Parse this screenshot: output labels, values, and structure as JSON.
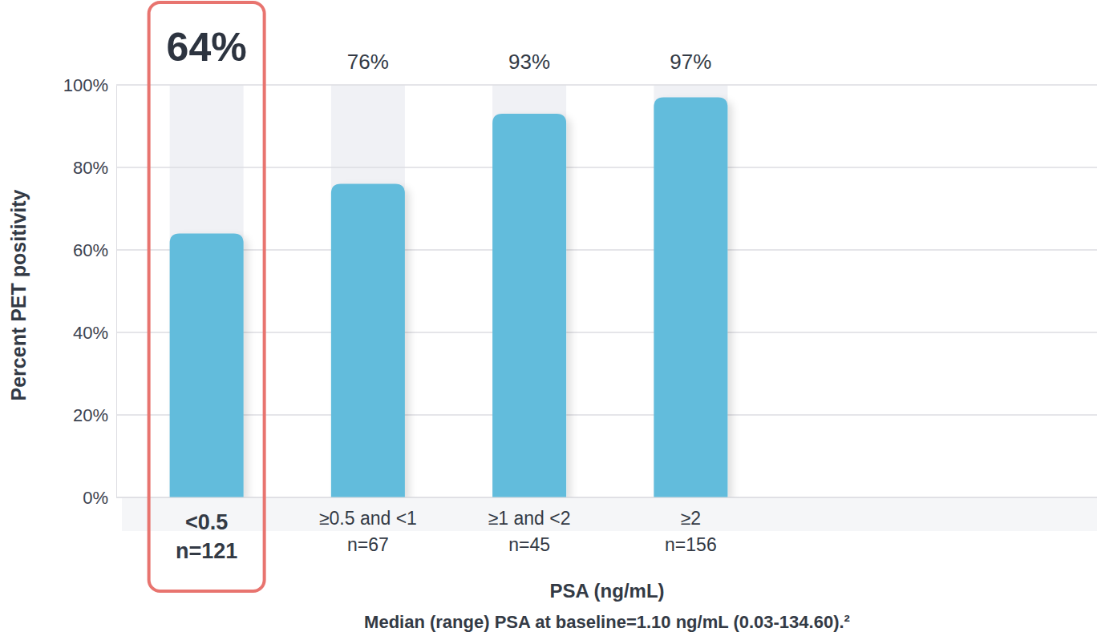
{
  "chart_data": {
    "type": "bar",
    "x_label": "PSA (ng/mL)",
    "y_label": "Percent PET positivity",
    "footnote": "Median (range) PSA at baseline=1.10 ng/mL (0.03-134.60).²",
    "categories": [
      "<0.5",
      "≥0.5 and <1",
      "≥1 and <2",
      "≥2"
    ],
    "sample_size_labels": [
      "n=121",
      "n=67",
      "n=45",
      "n=156"
    ],
    "values": [
      64,
      76,
      93,
      97
    ],
    "value_labels": [
      "64%",
      "76%",
      "93%",
      "97%"
    ],
    "color": "#62bcdc",
    "ylim": [
      0,
      100
    ],
    "yticks": [
      {
        "value": 0,
        "label": "0%"
      },
      {
        "value": 20,
        "label": "20%"
      },
      {
        "value": 40,
        "label": "40%"
      },
      {
        "value": 60,
        "label": "60%"
      },
      {
        "value": 80,
        "label": "80%"
      },
      {
        "value": 100,
        "label": "100%"
      }
    ],
    "grid": true,
    "data_labels": true
  }
}
